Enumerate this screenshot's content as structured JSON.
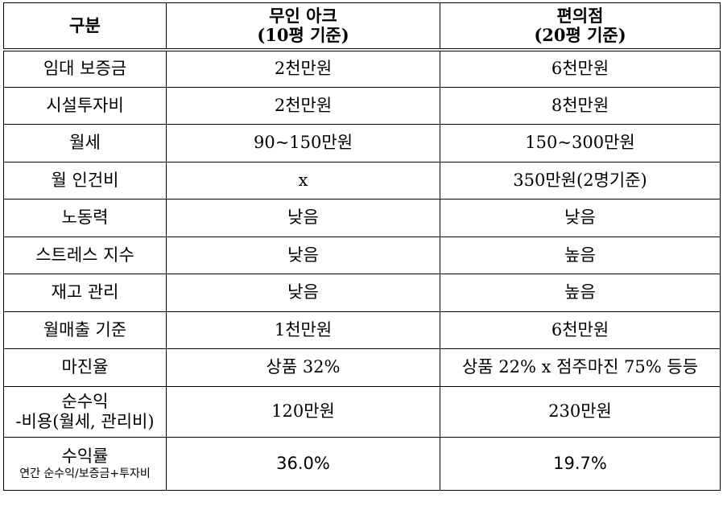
{
  "header": {
    "col0": "구분",
    "col1_line1": "무인 아크",
    "col1_line2": "(10평 기준)",
    "col2_line1": "편의점",
    "col2_line2": "(20평 기준)"
  },
  "rows": [
    {
      "label": "임대 보증금",
      "ark": "2천만원",
      "store": "6천만원"
    },
    {
      "label": "시설투자비",
      "ark": "2천만원",
      "store": "8천만원"
    },
    {
      "label": "월세",
      "ark": "90~150만원",
      "store": "150~300만원"
    },
    {
      "label": "월 인건비",
      "ark": "x",
      "store": "350만원(2명기준)"
    },
    {
      "label": "노동력",
      "ark": "낮음",
      "store": "낮음"
    },
    {
      "label": "스트레스 지수",
      "ark": "낮음",
      "store": "높음"
    },
    {
      "label": "재고 관리",
      "ark": "낮음",
      "store": "높음"
    },
    {
      "label": "월매출 기준",
      "ark": "1천만원",
      "store": "6천만원"
    },
    {
      "label": "마진율",
      "ark": "상품 32%",
      "store": "상품 22% x 점주마진 75% 등등"
    }
  ],
  "net_profit": {
    "label_line1": "순수익",
    "label_line2": "-비용(월세, 관리비)",
    "ark": "120만원",
    "store": "230만원"
  },
  "roi": {
    "label_line1": "수익률",
    "label_line2": "연간 순수익/보증금+투자비",
    "ark": "36.0%",
    "store": "19.7%"
  }
}
